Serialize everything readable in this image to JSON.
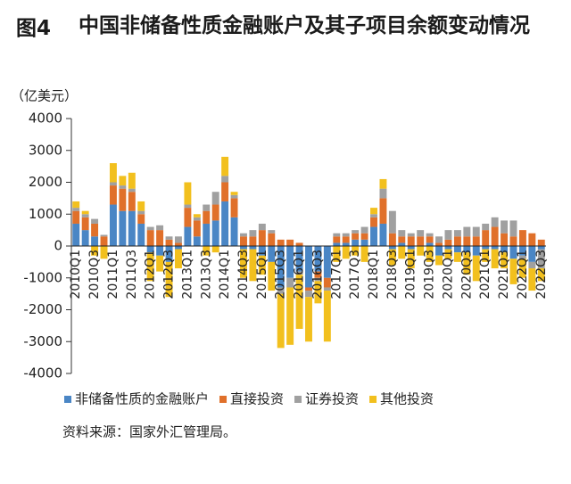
{
  "chart_data": {
    "type": "stacked-bar",
    "figure_label": "图4",
    "title": "中国非储备性质金融账户及其子项目余额变动情况",
    "y_label": "（亿美元）",
    "source": "资料来源：国家外汇管理局。",
    "categories": [
      "2010Q1",
      null,
      "2010Q3",
      null,
      "2011Q1",
      null,
      "2011Q3",
      null,
      "2012Q1",
      null,
      "2012Q3",
      null,
      "2013Q1",
      null,
      "2013Q3",
      null,
      "2014Q1",
      null,
      "2014Q3",
      null,
      "2015Q1",
      null,
      "2015Q3",
      null,
      "2016Q1",
      null,
      "2016Q3",
      null,
      "2017Q1",
      null,
      "2017Q3",
      null,
      "2018Q1",
      null,
      "2018Q3",
      null,
      "2019Q1",
      null,
      "2019Q3",
      null,
      "2020Q1",
      null,
      "2020Q3",
      null,
      "2021Q1",
      null,
      "2021Q3",
      null,
      "2022Q1",
      null,
      "2022Q3"
    ],
    "series": [
      {
        "name": "非储备性质的金融账户",
        "color": "#4a86c5",
        "values": [
          700,
          500,
          300,
          0,
          1300,
          1100,
          1100,
          700,
          -200,
          -300,
          -500,
          -100,
          600,
          300,
          700,
          800,
          1400,
          900,
          -100,
          -100,
          -300,
          -500,
          -1300,
          -1000,
          -800,
          -1300,
          -800,
          -1000,
          100,
          100,
          200,
          200,
          600,
          700,
          -100,
          100,
          -100,
          0,
          100,
          -300,
          -100,
          -200,
          -200,
          -300,
          -100,
          -100,
          -200,
          -400,
          -300,
          -500,
          -100
        ]
      },
      {
        "name": "直接投资",
        "color": "#e0702a",
        "values": [
          400,
          400,
          400,
          300,
          600,
          700,
          600,
          300,
          500,
          500,
          200,
          100,
          600,
          500,
          400,
          500,
          600,
          600,
          300,
          300,
          500,
          400,
          200,
          200,
          100,
          -100,
          -200,
          -300,
          200,
          200,
          200,
          200,
          300,
          800,
          400,
          200,
          300,
          300,
          200,
          100,
          200,
          300,
          300,
          300,
          500,
          600,
          400,
          300,
          500,
          400,
          200
        ]
      },
      {
        "name": "证券投资",
        "color": "#a0a0a0",
        "values": [
          100,
          100,
          150,
          50,
          100,
          100,
          100,
          100,
          100,
          150,
          100,
          200,
          100,
          100,
          200,
          400,
          200,
          100,
          100,
          200,
          200,
          100,
          -200,
          -300,
          -100,
          -200,
          -100,
          -100,
          100,
          100,
          100,
          200,
          100,
          300,
          700,
          200,
          100,
          200,
          100,
          200,
          300,
          200,
          300,
          300,
          200,
          300,
          400,
          500,
          -100,
          -200,
          -600
        ]
      },
      {
        "name": "其他投资",
        "color": "#f2c01e",
        "values": [
          200,
          100,
          -300,
          -400,
          600,
          300,
          500,
          300,
          -900,
          -500,
          -1100,
          -600,
          700,
          100,
          -300,
          -200,
          600,
          100,
          -900,
          -1000,
          -600,
          -900,
          -1700,
          -1800,
          -1700,
          -1400,
          -700,
          -1600,
          -500,
          -400,
          -300,
          -500,
          200,
          300,
          -500,
          -400,
          -600,
          -300,
          -500,
          -300,
          -300,
          -300,
          -700,
          -800,
          -400,
          -600,
          -500,
          -800,
          -600,
          -700,
          -400
        ]
      }
    ],
    "ylim": [
      -4000,
      4000
    ],
    "yticks": [
      -4000,
      -3000,
      -2000,
      -1000,
      0,
      1000,
      2000,
      3000,
      4000
    ],
    "legend": "bottom"
  }
}
